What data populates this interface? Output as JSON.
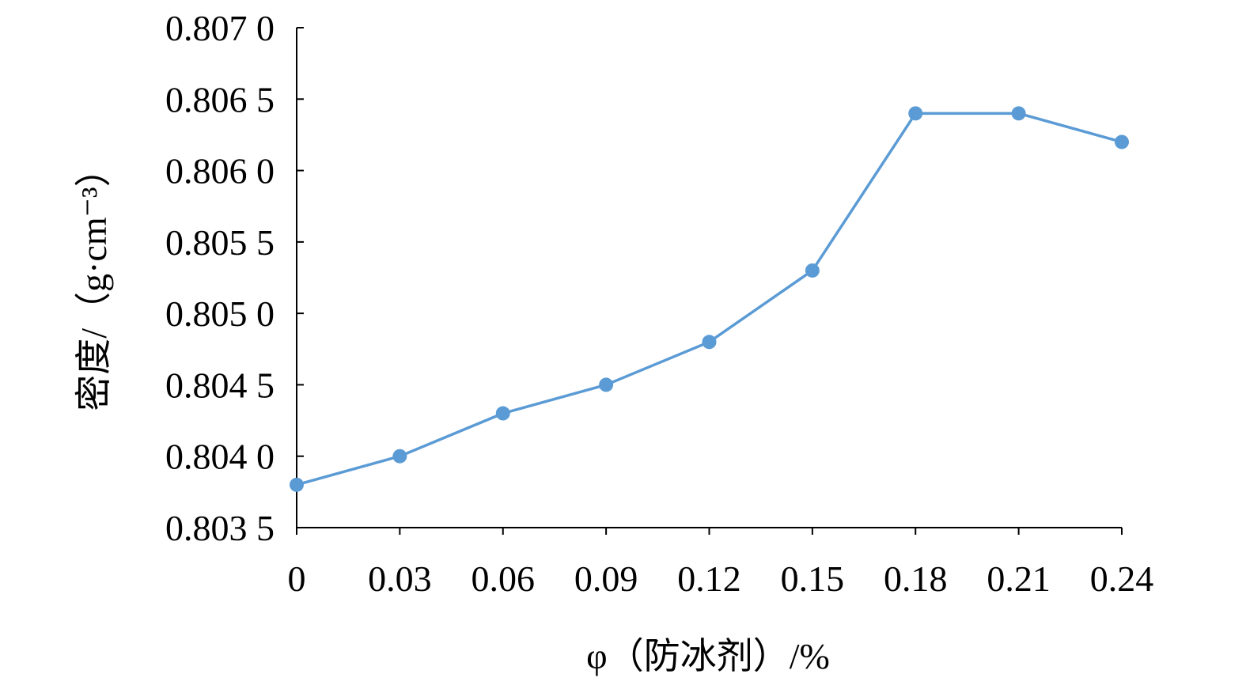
{
  "chart_data": {
    "type": "line",
    "xlabel": "φ（防冰剂）/%",
    "ylabel": "密度/（g·cm⁻³）",
    "x": [
      0,
      0.03,
      0.06,
      0.09,
      0.12,
      0.15,
      0.18,
      0.21,
      0.24
    ],
    "x_tick_labels": [
      "0",
      "0.03",
      "0.06",
      "0.09",
      "0.12",
      "0.15",
      "0.18",
      "0.21",
      "0.24"
    ],
    "y_tick_labels": [
      "0.807 0",
      "0.806 5",
      "0.806 0",
      "0.805 5",
      "0.805 0",
      "0.804 5",
      "0.804 0",
      "0.803 5"
    ],
    "y_ticks": [
      0.807,
      0.8065,
      0.806,
      0.8055,
      0.805,
      0.8045,
      0.804,
      0.8035
    ],
    "series": [
      {
        "values": [
          0.8038,
          0.804,
          0.8043,
          0.8045,
          0.8048,
          0.8053,
          0.8064,
          0.8064,
          0.8062
        ]
      }
    ],
    "xlim": [
      0,
      0.24
    ],
    "ylim": [
      0.8035,
      0.807
    ],
    "grid": false,
    "colors": {
      "series": "#5b9bd5",
      "axis": "#000000"
    }
  }
}
